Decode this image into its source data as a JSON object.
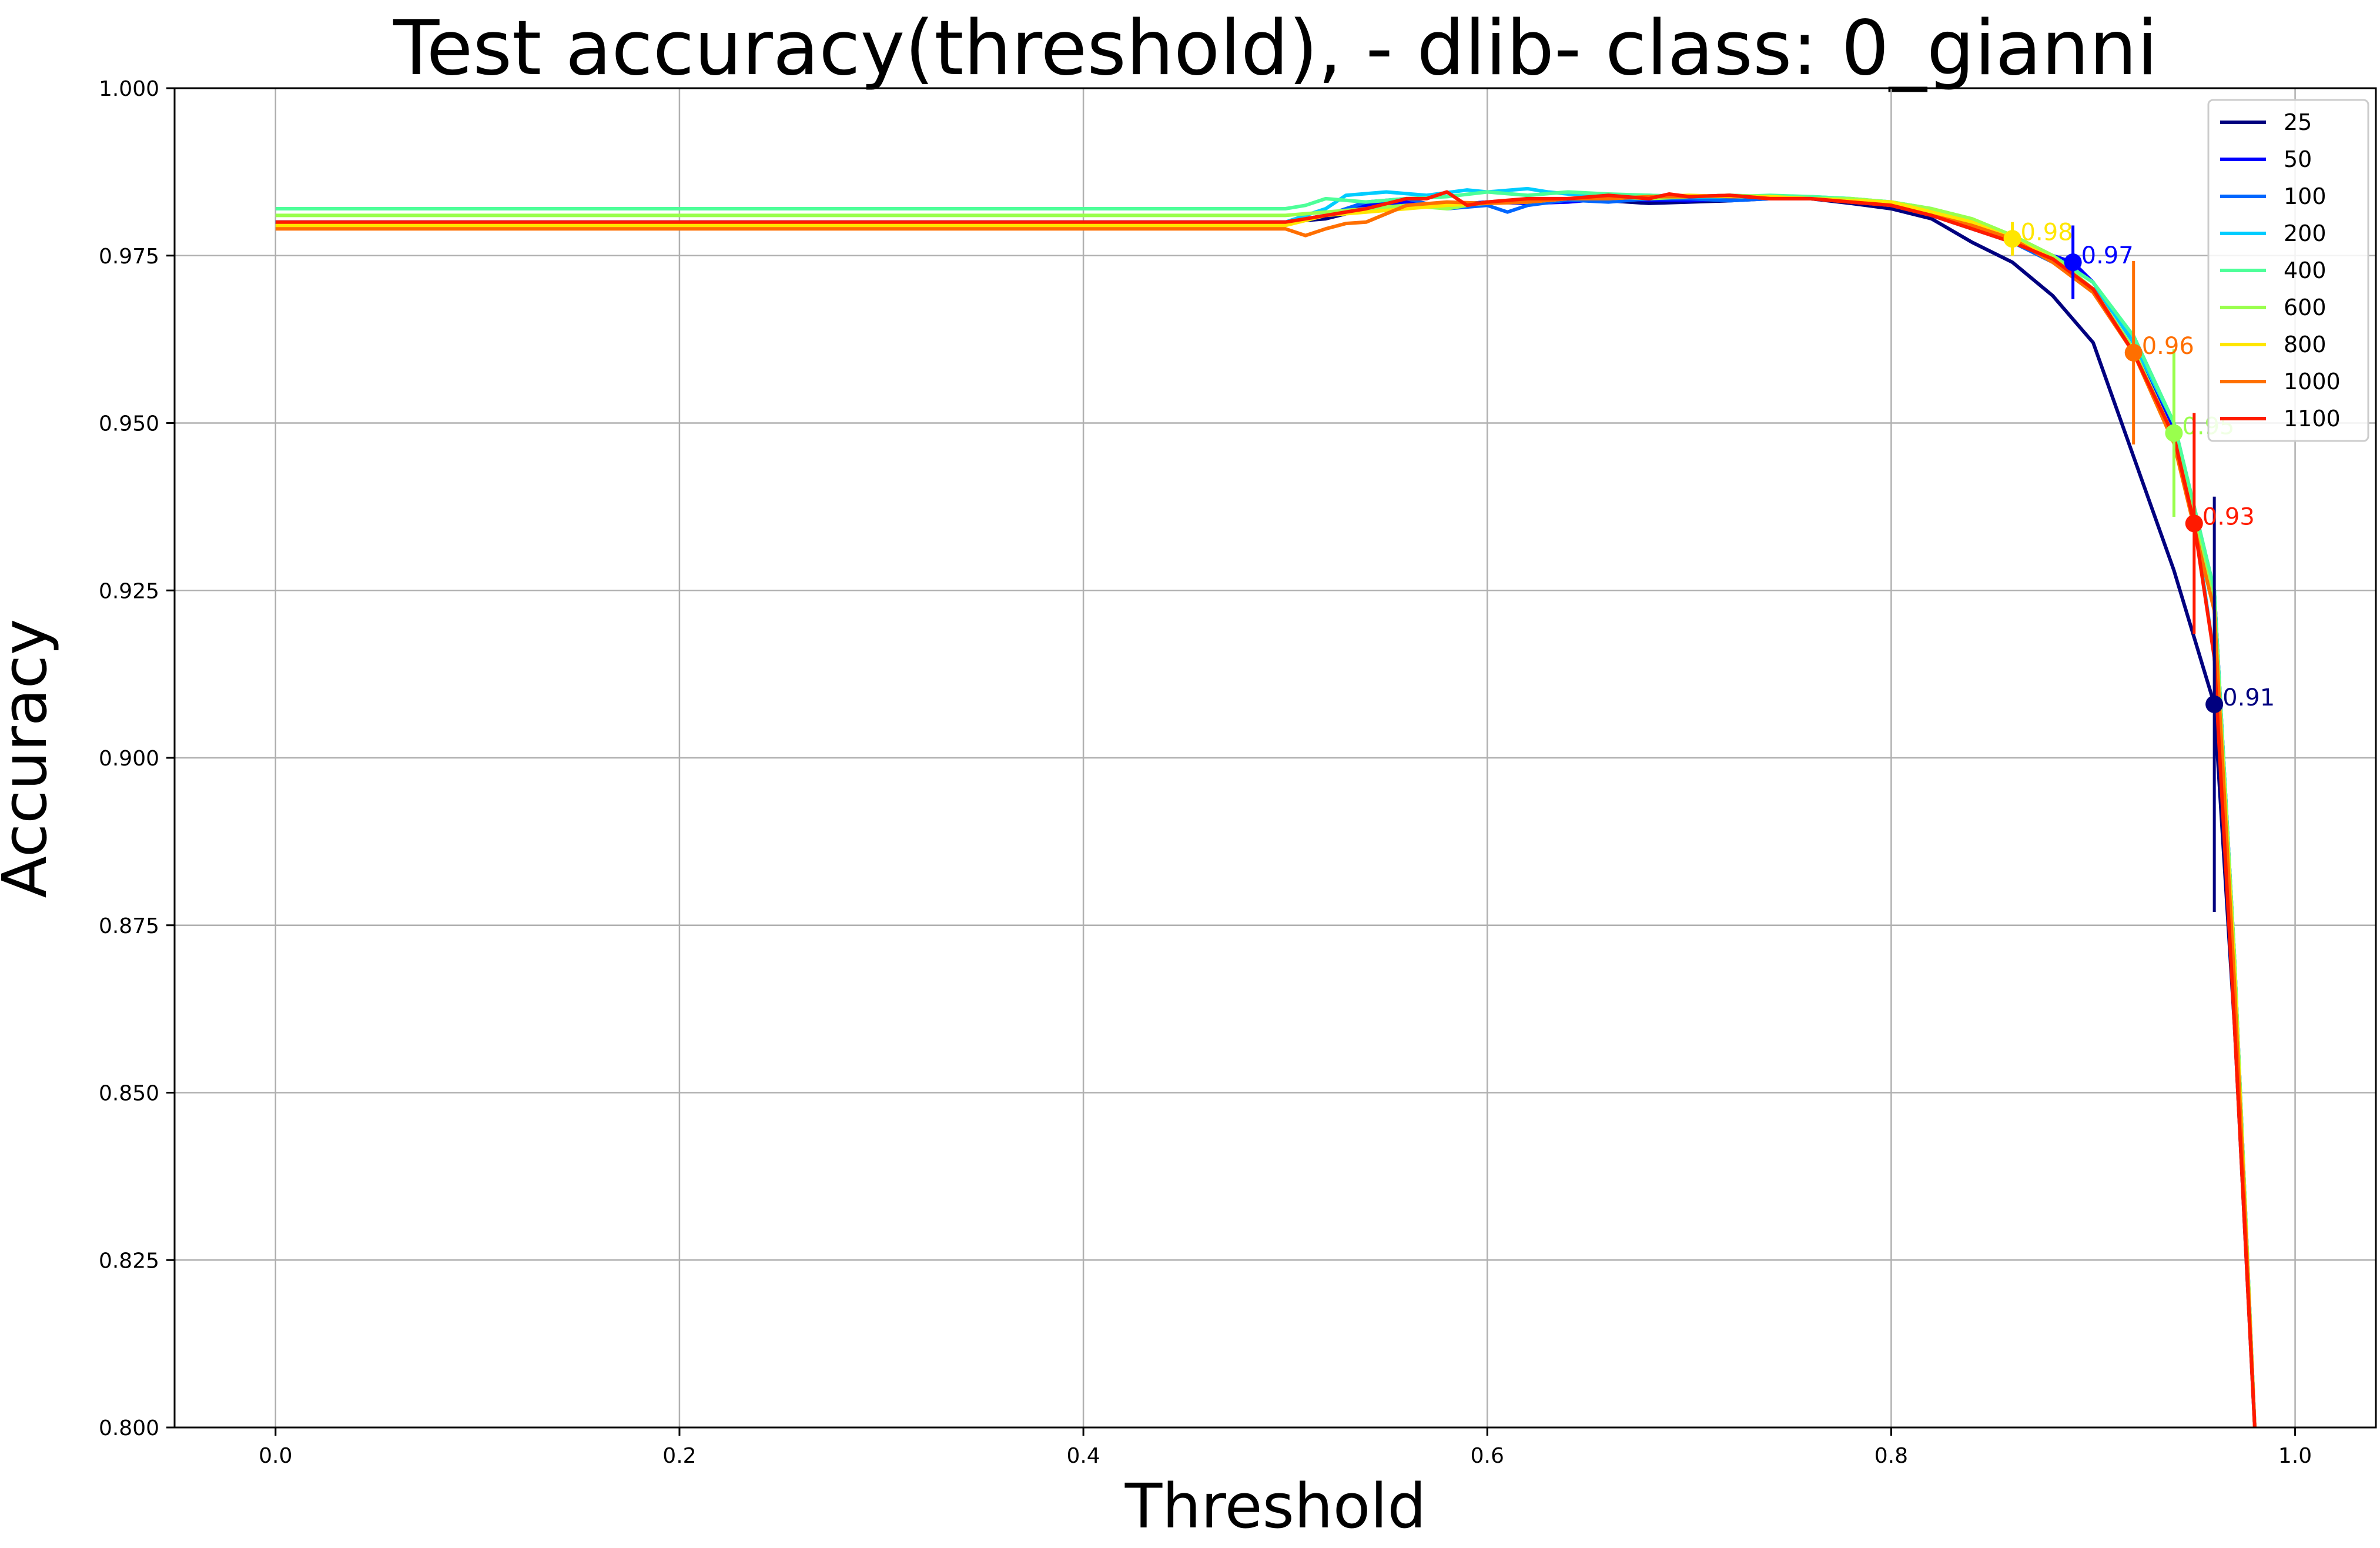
{
  "chart_data": {
    "type": "line",
    "title": "Test accuracy(threshold), - dlib-  class: 0_gianni",
    "xlabel": "Threshold",
    "ylabel": "Accuracy",
    "xlim": [
      -0.05,
      1.04
    ],
    "ylim": [
      0.8,
      1.0
    ],
    "xticks": [
      "0.0",
      "0.2",
      "0.4",
      "0.6",
      "0.8",
      "1.0"
    ],
    "yticks": [
      "0.800",
      "0.825",
      "0.850",
      "0.875",
      "0.900",
      "0.925",
      "0.950",
      "0.975",
      "1.000"
    ],
    "grid": true,
    "legend_position": "top-right",
    "series": [
      {
        "name": "25",
        "color": "#00007f",
        "x": [
          0.0,
          0.5,
          0.52,
          0.54,
          0.56,
          0.58,
          0.6,
          0.62,
          0.64,
          0.66,
          0.68,
          0.7,
          0.72,
          0.74,
          0.76,
          0.78,
          0.8,
          0.82,
          0.84,
          0.86,
          0.88,
          0.9,
          0.92,
          0.94,
          0.96,
          0.97,
          0.98
        ],
        "y": [
          0.98,
          0.98,
          0.9805,
          0.982,
          0.9825,
          0.9825,
          0.983,
          0.9832,
          0.9833,
          0.9832,
          0.9828,
          0.983,
          0.9832,
          0.9835,
          0.9835,
          0.9828,
          0.982,
          0.9805,
          0.977,
          0.974,
          0.969,
          0.962,
          0.945,
          0.928,
          0.908,
          0.86,
          0.8
        ],
        "marker": {
          "x": 0.96,
          "y": 0.908,
          "label": "0.91",
          "err": 0.031
        }
      },
      {
        "name": "50",
        "color": "#0000ff",
        "x": [
          0.0,
          0.5,
          0.52,
          0.54,
          0.56,
          0.58,
          0.6,
          0.62,
          0.64,
          0.66,
          0.68,
          0.7,
          0.72,
          0.74,
          0.76,
          0.78,
          0.8,
          0.82,
          0.84,
          0.86,
          0.88,
          0.89,
          0.9,
          0.92,
          0.94,
          0.96,
          0.97,
          0.98
        ],
        "y": [
          0.98,
          0.98,
          0.981,
          0.9825,
          0.983,
          0.9825,
          0.983,
          0.9828,
          0.983,
          0.9835,
          0.9833,
          0.9832,
          0.9835,
          0.9838,
          0.9835,
          0.983,
          0.9825,
          0.9815,
          0.98,
          0.978,
          0.975,
          0.974,
          0.971,
          0.962,
          0.949,
          0.925,
          0.87,
          0.8
        ],
        "marker": {
          "x": 0.89,
          "y": 0.974,
          "label": "0.97",
          "err": 0.0055
        }
      },
      {
        "name": "100",
        "color": "#0066ff",
        "x": [
          0.0,
          0.5,
          0.52,
          0.54,
          0.56,
          0.58,
          0.6,
          0.61,
          0.62,
          0.64,
          0.66,
          0.68,
          0.7,
          0.72,
          0.74,
          0.76,
          0.78,
          0.8,
          0.82,
          0.84,
          0.86,
          0.88,
          0.9,
          0.92,
          0.94,
          0.96,
          0.97,
          0.98
        ],
        "y": [
          0.98,
          0.98,
          0.981,
          0.983,
          0.9835,
          0.982,
          0.9825,
          0.9815,
          0.9825,
          0.9833,
          0.983,
          0.9835,
          0.9835,
          0.9832,
          0.9835,
          0.9838,
          0.9832,
          0.9825,
          0.981,
          0.979,
          0.977,
          0.974,
          0.97,
          0.963,
          0.95,
          0.925,
          0.87,
          0.8
        ]
      },
      {
        "name": "200",
        "color": "#00ccff",
        "x": [
          0.0,
          0.5,
          0.52,
          0.53,
          0.55,
          0.57,
          0.59,
          0.6,
          0.62,
          0.63,
          0.64,
          0.66,
          0.68,
          0.7,
          0.72,
          0.74,
          0.76,
          0.78,
          0.8,
          0.82,
          0.84,
          0.86,
          0.88,
          0.9,
          0.92,
          0.94,
          0.95,
          0.96,
          0.97,
          0.98
        ],
        "y": [
          0.98,
          0.98,
          0.982,
          0.984,
          0.9845,
          0.984,
          0.9848,
          0.9845,
          0.985,
          0.9845,
          0.9842,
          0.984,
          0.984,
          0.9838,
          0.984,
          0.9838,
          0.9838,
          0.9835,
          0.983,
          0.982,
          0.98,
          0.978,
          0.975,
          0.971,
          0.962,
          0.95,
          0.936,
          0.915,
          0.865,
          0.8
        ]
      },
      {
        "name": "400",
        "color": "#4dff99",
        "x": [
          0.0,
          0.5,
          0.51,
          0.52,
          0.54,
          0.56,
          0.58,
          0.6,
          0.62,
          0.64,
          0.66,
          0.68,
          0.7,
          0.72,
          0.74,
          0.76,
          0.78,
          0.8,
          0.82,
          0.84,
          0.86,
          0.88,
          0.9,
          0.92,
          0.94,
          0.96,
          0.97,
          0.98
        ],
        "y": [
          0.982,
          0.982,
          0.9825,
          0.9835,
          0.983,
          0.9835,
          0.9838,
          0.9845,
          0.984,
          0.9845,
          0.9842,
          0.984,
          0.9838,
          0.9838,
          0.984,
          0.9838,
          0.9835,
          0.983,
          0.982,
          0.9805,
          0.978,
          0.975,
          0.971,
          0.963,
          0.95,
          0.925,
          0.87,
          0.8
        ]
      },
      {
        "name": "600",
        "color": "#99ff4d",
        "x": [
          0.0,
          0.5,
          0.52,
          0.54,
          0.56,
          0.58,
          0.6,
          0.62,
          0.64,
          0.66,
          0.68,
          0.7,
          0.72,
          0.74,
          0.76,
          0.78,
          0.8,
          0.82,
          0.84,
          0.86,
          0.88,
          0.9,
          0.92,
          0.94,
          0.96,
          0.97,
          0.98
        ],
        "y": [
          0.981,
          0.981,
          0.9815,
          0.982,
          0.9825,
          0.982,
          0.983,
          0.983,
          0.9835,
          0.9838,
          0.9835,
          0.9838,
          0.984,
          0.9838,
          0.9835,
          0.9835,
          0.983,
          0.982,
          0.9805,
          0.978,
          0.975,
          0.97,
          0.961,
          0.948,
          0.923,
          0.87,
          0.8
        ],
        "marker": {
          "x": 0.94,
          "y": 0.9485,
          "label": "0.95",
          "err": 0.0125
        }
      },
      {
        "name": "800",
        "color": "#ffe600",
        "x": [
          0.0,
          0.5,
          0.52,
          0.54,
          0.56,
          0.58,
          0.6,
          0.62,
          0.64,
          0.66,
          0.68,
          0.7,
          0.72,
          0.74,
          0.76,
          0.78,
          0.8,
          0.82,
          0.84,
          0.86,
          0.88,
          0.9,
          0.92,
          0.94,
          0.96,
          0.97,
          0.98
        ],
        "y": [
          0.9795,
          0.9795,
          0.981,
          0.9815,
          0.982,
          0.9825,
          0.9828,
          0.983,
          0.9835,
          0.9835,
          0.9838,
          0.984,
          0.9838,
          0.9838,
          0.9835,
          0.9832,
          0.983,
          0.9815,
          0.98,
          0.9775,
          0.9745,
          0.97,
          0.9605,
          0.947,
          0.922,
          0.868,
          0.8
        ],
        "marker": {
          "x": 0.86,
          "y": 0.9775,
          "label": "0.98",
          "err": 0.0025
        }
      },
      {
        "name": "1000",
        "color": "#ff6f00",
        "x": [
          0.0,
          0.5,
          0.51,
          0.52,
          0.53,
          0.54,
          0.56,
          0.58,
          0.6,
          0.62,
          0.64,
          0.66,
          0.68,
          0.7,
          0.72,
          0.74,
          0.76,
          0.78,
          0.8,
          0.82,
          0.84,
          0.86,
          0.88,
          0.9,
          0.92,
          0.94,
          0.96,
          0.97,
          0.98
        ],
        "y": [
          0.979,
          0.979,
          0.978,
          0.979,
          0.9798,
          0.98,
          0.9825,
          0.983,
          0.9828,
          0.983,
          0.9835,
          0.9835,
          0.9838,
          0.9838,
          0.984,
          0.9835,
          0.9835,
          0.983,
          0.9825,
          0.981,
          0.9795,
          0.9775,
          0.974,
          0.9695,
          0.9605,
          0.947,
          0.922,
          0.866,
          0.8
        ],
        "marker": {
          "x": 0.92,
          "y": 0.9605,
          "label": "0.96",
          "err": 0.0137
        }
      },
      {
        "name": "1100",
        "color": "#ff1a00",
        "x": [
          0.0,
          0.5,
          0.52,
          0.54,
          0.56,
          0.57,
          0.58,
          0.59,
          0.6,
          0.62,
          0.64,
          0.66,
          0.68,
          0.69,
          0.7,
          0.72,
          0.74,
          0.76,
          0.78,
          0.8,
          0.82,
          0.84,
          0.86,
          0.88,
          0.9,
          0.92,
          0.94,
          0.95,
          0.96,
          0.97,
          0.98
        ],
        "y": [
          0.98,
          0.98,
          0.981,
          0.982,
          0.9835,
          0.9835,
          0.9845,
          0.9825,
          0.983,
          0.9835,
          0.9835,
          0.984,
          0.9835,
          0.9842,
          0.9838,
          0.984,
          0.9835,
          0.9835,
          0.983,
          0.9825,
          0.981,
          0.979,
          0.977,
          0.9745,
          0.97,
          0.9605,
          0.948,
          0.935,
          0.915,
          0.86,
          0.8
        ],
        "marker": {
          "x": 0.95,
          "y": 0.935,
          "label": "0.93",
          "err": 0.0165
        }
      }
    ]
  }
}
